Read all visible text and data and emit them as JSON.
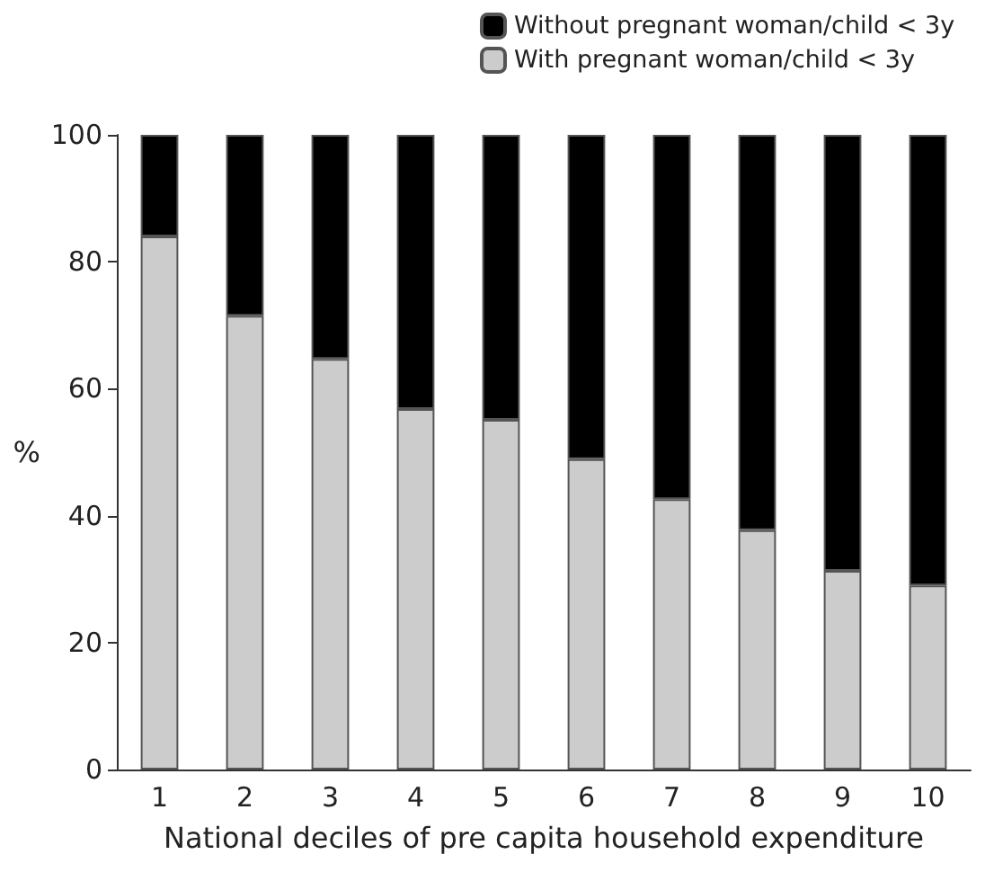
{
  "chart_data": {
    "type": "bar",
    "stacked": true,
    "categories": [
      "1",
      "2",
      "3",
      "4",
      "5",
      "6",
      "7",
      "8",
      "9",
      "10"
    ],
    "series": [
      {
        "name": "With pregnant woman/child < 3y",
        "color": "#cccccc",
        "values": [
          84,
          71.5,
          64.7,
          56.8,
          55.1,
          48.9,
          42.6,
          37.7,
          31.3,
          29
        ]
      },
      {
        "name": "Without pregnant woman/child < 3y",
        "color": "#000000",
        "values": [
          16,
          28.5,
          35.3,
          43.2,
          44.9,
          51.1,
          57.4,
          62.3,
          68.7,
          71
        ]
      }
    ],
    "xlabel": "National deciles of pre capita household expenditure",
    "ylabel": "%",
    "ylim": [
      0,
      100
    ],
    "yticks": [
      0,
      20,
      40,
      60,
      80,
      100
    ],
    "legend": "top right",
    "grid": false
  }
}
